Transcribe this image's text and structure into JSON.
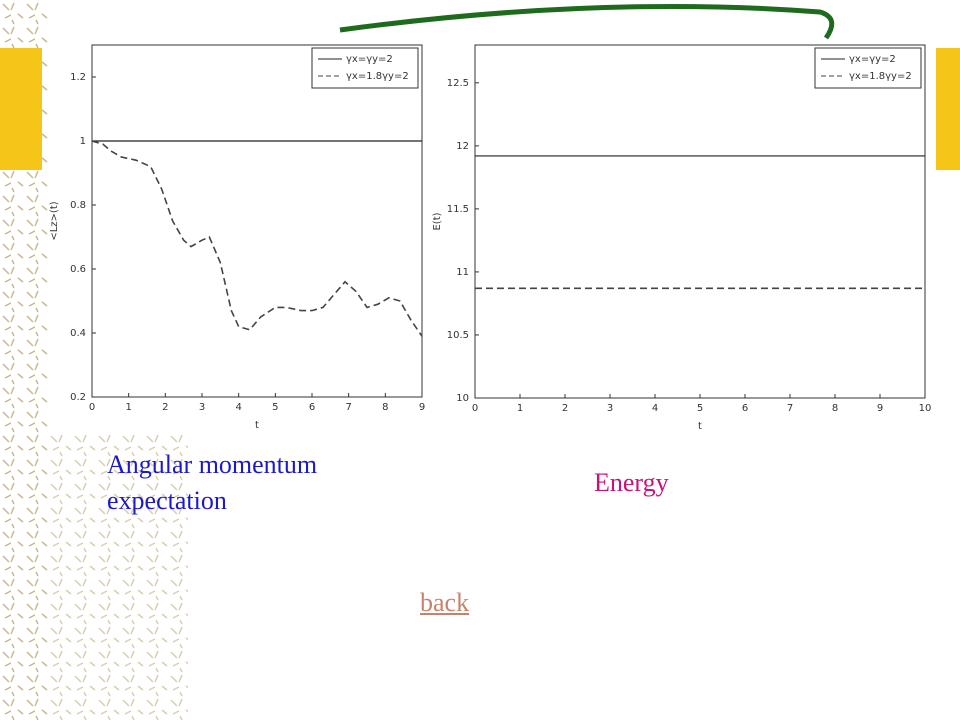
{
  "chart_data": [
    {
      "type": "line",
      "xlabel": "t",
      "ylabel": "<Lz>(t)",
      "xlim": [
        0,
        9
      ],
      "xticks": [
        0,
        1,
        2,
        3,
        4,
        5,
        6,
        7,
        8,
        9
      ],
      "ylim": [
        0.2,
        1.3
      ],
      "yticks": [
        0.2,
        0.4,
        0.6,
        0.8,
        1,
        1.2
      ],
      "legend": "upper right",
      "series": [
        {
          "name": "γx=γy=2",
          "color": "#222222",
          "dash": false,
          "x": [
            0,
            9
          ],
          "values": [
            1,
            1
          ]
        },
        {
          "name": "γx=1.8γy=2",
          "color": "#444444",
          "dash": true,
          "x": [
            0,
            0.3,
            0.5,
            0.8,
            1.2,
            1.6,
            1.9,
            2.2,
            2.5,
            2.7,
            3.0,
            3.2,
            3.5,
            3.8,
            4.0,
            4.3,
            4.6,
            5.0,
            5.3,
            5.7,
            6.0,
            6.3,
            6.6,
            6.9,
            7.2,
            7.5,
            7.8,
            8.1,
            8.4,
            8.7,
            9.0
          ],
          "values": [
            1.0,
            0.99,
            0.97,
            0.95,
            0.94,
            0.92,
            0.85,
            0.75,
            0.69,
            0.67,
            0.69,
            0.7,
            0.62,
            0.47,
            0.42,
            0.41,
            0.45,
            0.48,
            0.48,
            0.47,
            0.47,
            0.48,
            0.52,
            0.56,
            0.53,
            0.48,
            0.49,
            0.51,
            0.5,
            0.44,
            0.39
          ]
        }
      ]
    },
    {
      "type": "line",
      "xlabel": "t",
      "ylabel": "E(t)",
      "xlim": [
        0,
        10
      ],
      "xticks": [
        0,
        1,
        2,
        3,
        4,
        5,
        6,
        7,
        8,
        9,
        10
      ],
      "ylim": [
        10,
        12.8
      ],
      "yticks": [
        10,
        10.5,
        11,
        11.5,
        12,
        12.5
      ],
      "legend": "upper right",
      "series": [
        {
          "name": "γx=γy=2",
          "color": "#222222",
          "dash": false,
          "x": [
            0,
            10
          ],
          "values": [
            11.92,
            11.92
          ]
        },
        {
          "name": "γx=1.8γy=2",
          "color": "#444444",
          "dash": true,
          "x": [
            0,
            10
          ],
          "values": [
            10.87,
            10.87
          ]
        }
      ]
    }
  ],
  "captions": {
    "left": "Angular momentum expectation",
    "right": "Energy"
  },
  "link": "back"
}
